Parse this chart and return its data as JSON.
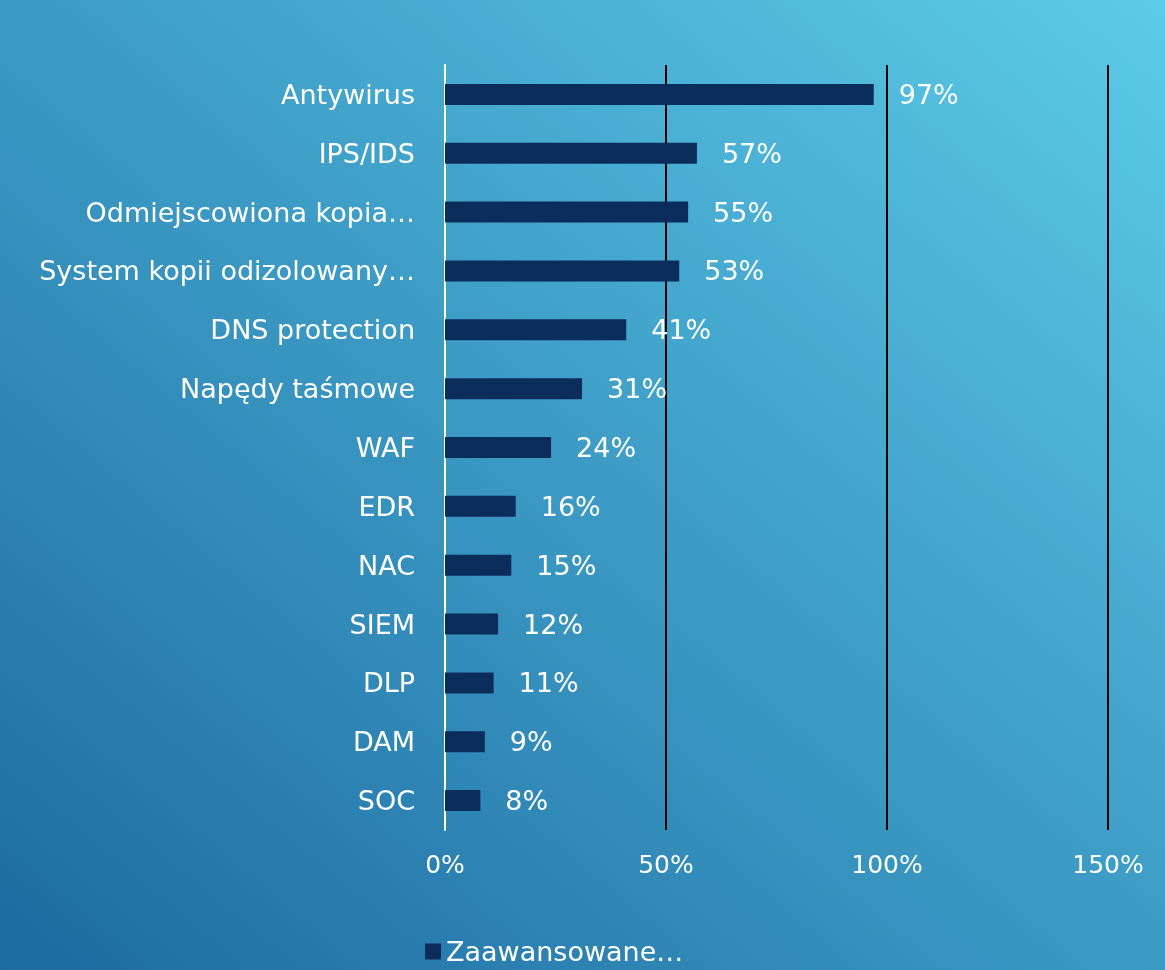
{
  "chart_data": {
    "type": "bar",
    "orientation": "horizontal",
    "categories": [
      "Antywirus",
      "IPS/IDS",
      "Odmiejscowiona kopia…",
      "System kopii odizolowany…",
      "DNS protection",
      "Napędy taśmowe",
      "WAF",
      "EDR",
      "NAC",
      "SIEM",
      "DLP",
      "DAM",
      "SOC"
    ],
    "series": [
      {
        "name": "Zaawansowane…",
        "color": "#0b2d5c",
        "values": [
          97,
          57,
          55,
          53,
          41,
          31,
          24,
          16,
          15,
          12,
          11,
          9,
          8
        ],
        "value_labels": [
          "97%",
          "57%",
          "55%",
          "53%",
          "41%",
          "31%",
          "24%",
          "16%",
          "15%",
          "12%",
          "11%",
          "9%",
          "8%"
        ]
      }
    ],
    "xlim": [
      0,
      150
    ],
    "xticks": [
      {
        "value": 0,
        "label": "0%"
      },
      {
        "value": 50,
        "label": "50%"
      },
      {
        "value": 100,
        "label": "100%"
      },
      {
        "value": 150,
        "label": "150%"
      }
    ],
    "grid": "x",
    "legend": "bottom"
  }
}
